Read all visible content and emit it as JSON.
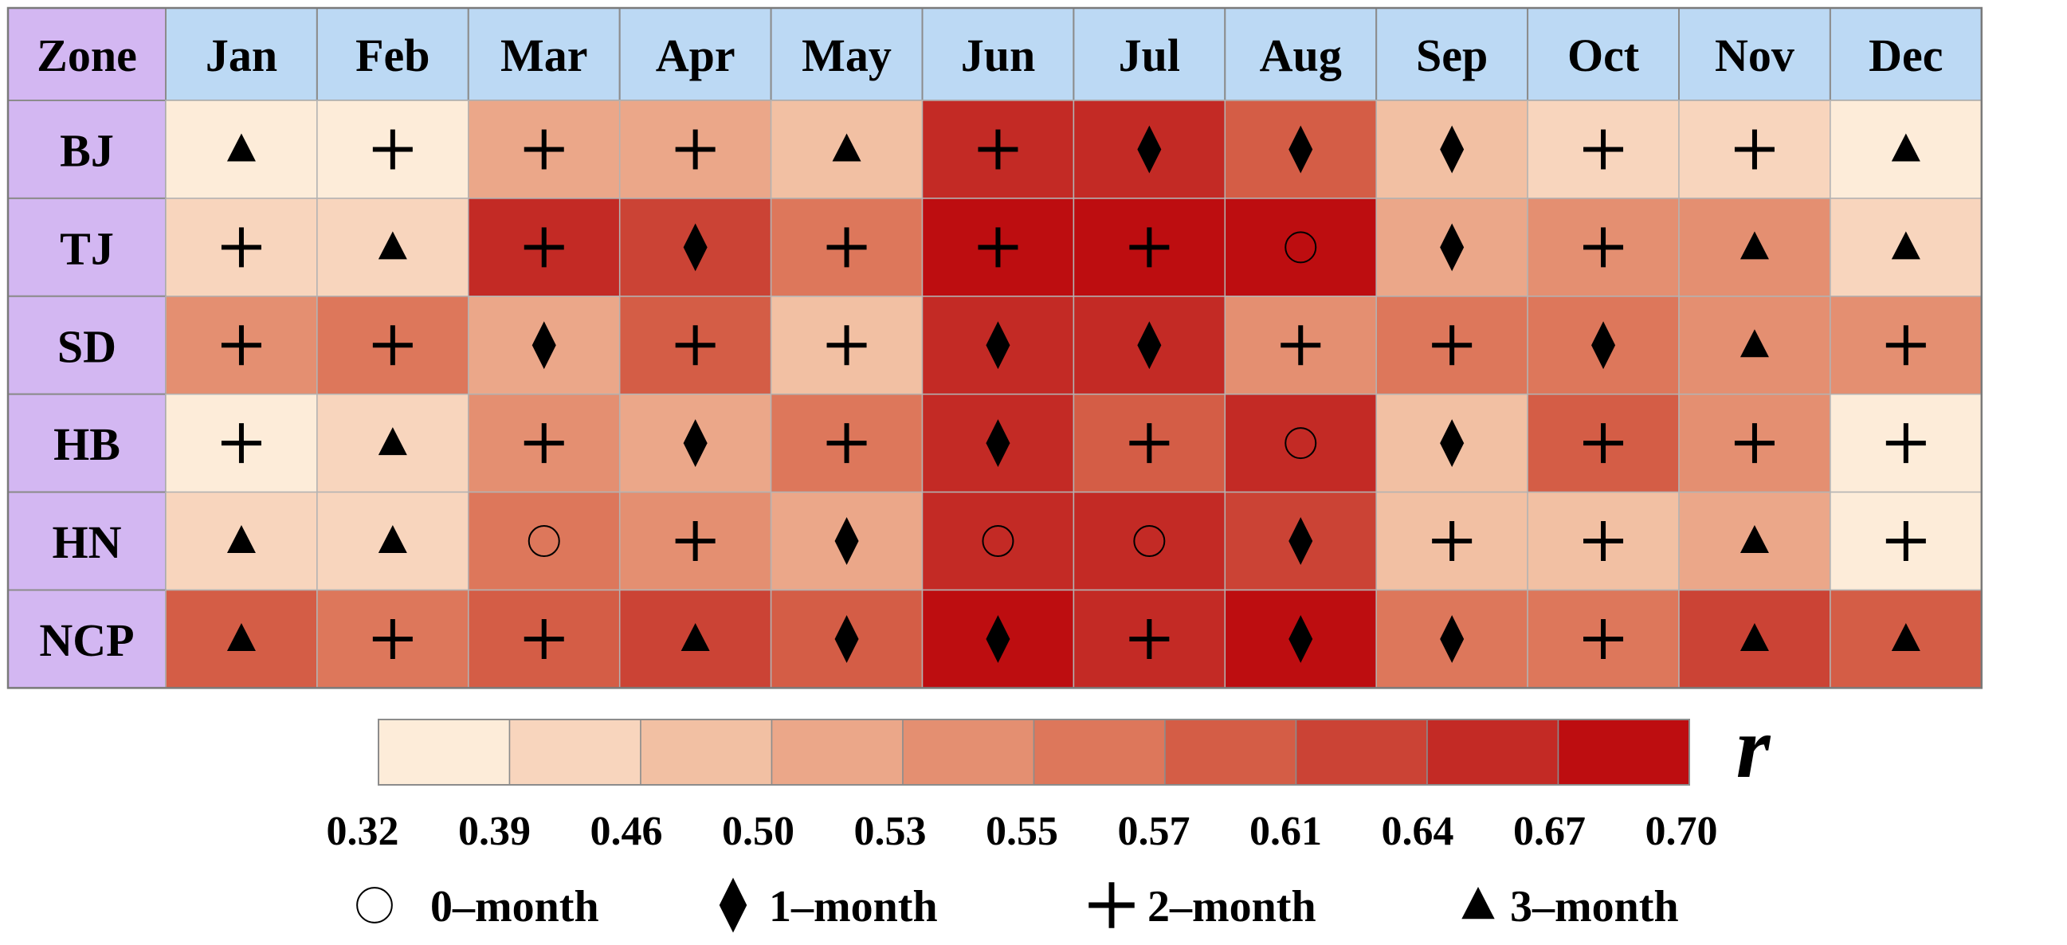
{
  "chart_data": {
    "type": "heatmap",
    "corner_label": "Zone",
    "columns": [
      "Jan",
      "Feb",
      "Mar",
      "Apr",
      "May",
      "Jun",
      "Jul",
      "Aug",
      "Sep",
      "Oct",
      "Nov",
      "Dec"
    ],
    "rows": [
      "BJ",
      "TJ",
      "SD",
      "HB",
      "HN",
      "NCP"
    ],
    "color_levels": [
      [
        0,
        0,
        3,
        3,
        2,
        8,
        8,
        6,
        2,
        1,
        1,
        0
      ],
      [
        1,
        1,
        8,
        7,
        5,
        9,
        9,
        9,
        3,
        4,
        4,
        1
      ],
      [
        4,
        5,
        3,
        6,
        2,
        8,
        8,
        4,
        5,
        5,
        4,
        4
      ],
      [
        0,
        1,
        4,
        3,
        5,
        8,
        6,
        8,
        2,
        6,
        4,
        0
      ],
      [
        1,
        1,
        5,
        4,
        3,
        8,
        8,
        7,
        2,
        2,
        3,
        0
      ],
      [
        6,
        5,
        6,
        7,
        6,
        9,
        8,
        9,
        5,
        5,
        7,
        6
      ]
    ],
    "markers": [
      [
        "triangle",
        "plus",
        "plus",
        "plus",
        "triangle",
        "plus",
        "diamond",
        "diamond",
        "diamond",
        "plus",
        "plus",
        "triangle"
      ],
      [
        "plus",
        "triangle",
        "plus",
        "diamond",
        "plus",
        "plus",
        "plus",
        "circle",
        "diamond",
        "plus",
        "triangle",
        "triangle"
      ],
      [
        "plus",
        "plus",
        "diamond",
        "plus",
        "plus",
        "diamond",
        "diamond",
        "plus",
        "plus",
        "diamond",
        "triangle",
        "plus"
      ],
      [
        "plus",
        "triangle",
        "plus",
        "diamond",
        "plus",
        "diamond",
        "plus",
        "circle",
        "diamond",
        "plus",
        "plus",
        "plus"
      ],
      [
        "triangle",
        "triangle",
        "circle",
        "plus",
        "diamond",
        "circle",
        "circle",
        "diamond",
        "plus",
        "plus",
        "triangle",
        "plus"
      ],
      [
        "triangle",
        "plus",
        "plus",
        "triangle",
        "diamond",
        "diamond",
        "plus",
        "diamond",
        "diamond",
        "plus",
        "triangle",
        "triangle"
      ]
    ],
    "colorbar": {
      "label": "r",
      "ticks": [
        "0.32",
        "0.39",
        "0.46",
        "0.50",
        "0.53",
        "0.55",
        "0.57",
        "0.61",
        "0.64",
        "0.67",
        "0.70"
      ],
      "colors": [
        "#fdecd9",
        "#f8d5bd",
        "#f2c0a3",
        "#eba789",
        "#e48f71",
        "#dd775b",
        "#d45d46",
        "#cb4335",
        "#c32a25",
        "#bd0d10"
      ]
    },
    "legend": [
      {
        "marker": "circle",
        "label": "0–month"
      },
      {
        "marker": "diamond",
        "label": "1–month"
      },
      {
        "marker": "plus",
        "label": "2–month"
      },
      {
        "marker": "triangle",
        "label": "3–month"
      }
    ],
    "header_color": "#bcd9f4",
    "zone_color": "#d3b7f2"
  }
}
